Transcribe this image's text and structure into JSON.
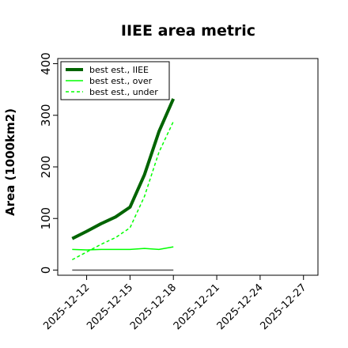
{
  "chart_data": {
    "type": "line",
    "title": "IIEE area metric",
    "xlabel": "",
    "ylabel": "Area (1000km2)",
    "x": [
      "2025-12-11",
      "2025-12-12",
      "2025-12-13",
      "2025-12-14",
      "2025-12-15",
      "2025-12-16",
      "2025-12-17",
      "2025-12-18"
    ],
    "xlim": [
      "2025-12-10",
      "2025-12-28"
    ],
    "ylim": [
      -10,
      410
    ],
    "yticks": [
      0,
      100,
      200,
      300,
      400
    ],
    "xticks": [
      "2025-12-12",
      "2025-12-15",
      "2025-12-18",
      "2025-12-21",
      "2025-12-24",
      "2025-12-27"
    ],
    "grid": false,
    "legend_position": "top-left",
    "series": [
      {
        "name": "best est., IIEE",
        "color": "#006400",
        "style": "solid",
        "width": "thick",
        "values": [
          61,
          75,
          90,
          103,
          122,
          185,
          268,
          332
        ]
      },
      {
        "name": "best est., over",
        "color": "#00ff00",
        "style": "solid",
        "width": "thin",
        "values": [
          40,
          39,
          40,
          40,
          40,
          42,
          40,
          45
        ]
      },
      {
        "name": "best est., under",
        "color": "#00ff00",
        "style": "dashed",
        "width": "thin",
        "values": [
          20,
          35,
          50,
          63,
          82,
          143,
          228,
          288
        ]
      },
      {
        "name": "",
        "color": "#555555",
        "style": "solid",
        "width": "thin",
        "values": [
          0,
          0,
          0,
          0,
          0,
          0,
          0,
          0
        ]
      }
    ]
  }
}
